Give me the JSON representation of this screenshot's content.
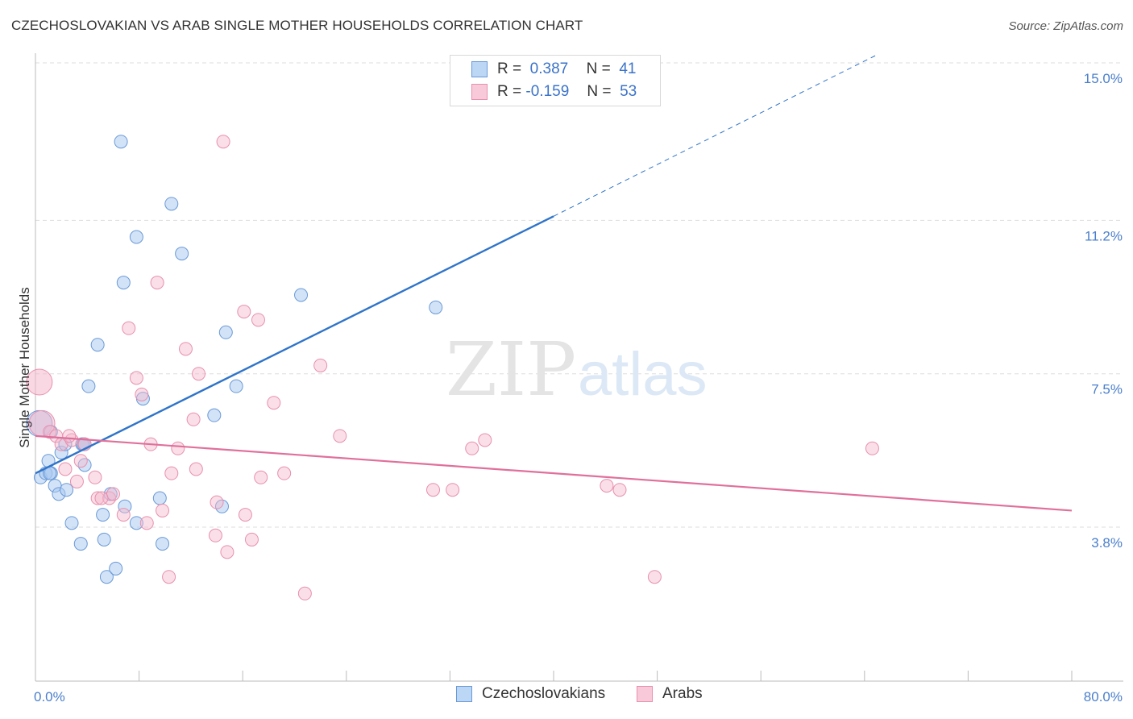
{
  "title": "CZECHOSLOVAKIAN VS ARAB SINGLE MOTHER HOUSEHOLDS CORRELATION CHART",
  "source": "Source: ZipAtlas.com",
  "watermark": {
    "zip": "ZIP",
    "atlas": "atlas"
  },
  "colors": {
    "czech_fill": "#a8c8f0",
    "czech_stroke": "#6a9ad8",
    "czech_line": "#2f74c9",
    "arab_fill": "#f5b8cc",
    "arab_stroke": "#e890ae",
    "arab_line": "#e0709a",
    "grid": "#dddddd",
    "tick_text": "#4a7fcc"
  },
  "legend_top": {
    "rows": [
      {
        "r_label": "R =",
        "r_value": "0.387",
        "n_label": "N =",
        "n_value": "41"
      },
      {
        "r_label": "R =",
        "r_value": "-0.159",
        "n_label": "N =",
        "n_value": "53"
      }
    ]
  },
  "legend_bottom": {
    "czech": "Czechoslovakians",
    "arab": "Arabs"
  },
  "chart_data": {
    "type": "scatter",
    "title": "CZECHOSLOVAKIAN VS ARAB SINGLE MOTHER HOUSEHOLDS CORRELATION CHART",
    "xlabel": "",
    "ylabel": "Single Mother Households",
    "xlim": [
      0,
      80
    ],
    "ylim": [
      0,
      15.5
    ],
    "x_tick_labels": [
      "0.0%",
      "80.0%"
    ],
    "y_ticks": [
      3.8,
      7.5,
      11.2,
      15.0
    ],
    "y_tick_labels": [
      "3.8%",
      "7.5%",
      "11.2%",
      "15.0%"
    ],
    "series": [
      {
        "name": "Czechoslovakians",
        "R": 0.387,
        "N": 41,
        "trend": {
          "x0": 0,
          "y0": 5.1,
          "x1": 40,
          "y1": 11.3,
          "dashed_to_x": 65,
          "dashed_to_y": 15.2
        },
        "points": [
          [
            0.3,
            6.3
          ],
          [
            0.4,
            5.0
          ],
          [
            0.8,
            5.1
          ],
          [
            1.0,
            5.4
          ],
          [
            1.2,
            5.1
          ],
          [
            1.2,
            6.1
          ],
          [
            1.5,
            4.8
          ],
          [
            1.8,
            4.6
          ],
          [
            2.0,
            5.6
          ],
          [
            2.3,
            5.8
          ],
          [
            2.8,
            3.9
          ],
          [
            3.5,
            3.4
          ],
          [
            3.6,
            5.8
          ],
          [
            3.7,
            5.8
          ],
          [
            3.8,
            5.3
          ],
          [
            4.1,
            7.2
          ],
          [
            4.8,
            8.2
          ],
          [
            5.2,
            4.1
          ],
          [
            5.3,
            3.5
          ],
          [
            5.5,
            2.6
          ],
          [
            5.8,
            4.6
          ],
          [
            6.2,
            2.8
          ],
          [
            6.6,
            13.1
          ],
          [
            6.8,
            9.7
          ],
          [
            6.9,
            4.3
          ],
          [
            7.8,
            3.9
          ],
          [
            7.8,
            10.8
          ],
          [
            8.3,
            6.9
          ],
          [
            9.6,
            4.5
          ],
          [
            9.8,
            3.4
          ],
          [
            10.5,
            11.6
          ],
          [
            11.3,
            10.4
          ],
          [
            13.8,
            6.5
          ],
          [
            14.4,
            4.3
          ],
          [
            14.7,
            8.5
          ],
          [
            15.5,
            7.2
          ],
          [
            20.5,
            9.4
          ],
          [
            30.9,
            9.1
          ],
          [
            3.8,
            5.8
          ],
          [
            2.4,
            4.7
          ],
          [
            1.1,
            5.1
          ]
        ]
      },
      {
        "name": "Arabs",
        "R": -0.159,
        "N": 53,
        "trend": {
          "x0": 0,
          "y0": 6.0,
          "x1": 80,
          "y1": 4.2
        },
        "points": [
          [
            0.3,
            7.3
          ],
          [
            0.5,
            6.3
          ],
          [
            1.1,
            6.1
          ],
          [
            1.6,
            6.0
          ],
          [
            2.0,
            5.8
          ],
          [
            2.3,
            5.2
          ],
          [
            2.8,
            5.9
          ],
          [
            3.2,
            4.9
          ],
          [
            3.5,
            5.4
          ],
          [
            3.8,
            5.8
          ],
          [
            4.6,
            5.0
          ],
          [
            4.8,
            4.5
          ],
          [
            5.7,
            4.5
          ],
          [
            6.0,
            4.6
          ],
          [
            6.8,
            4.1
          ],
          [
            7.2,
            8.6
          ],
          [
            7.8,
            7.4
          ],
          [
            8.2,
            7.0
          ],
          [
            8.6,
            3.9
          ],
          [
            8.9,
            5.8
          ],
          [
            9.4,
            9.7
          ],
          [
            9.8,
            4.2
          ],
          [
            10.3,
            2.6
          ],
          [
            10.5,
            5.1
          ],
          [
            11.0,
            5.7
          ],
          [
            11.6,
            8.1
          ],
          [
            12.2,
            6.4
          ],
          [
            12.4,
            5.2
          ],
          [
            12.6,
            7.5
          ],
          [
            13.9,
            3.6
          ],
          [
            14.0,
            4.4
          ],
          [
            14.5,
            13.1
          ],
          [
            14.8,
            3.2
          ],
          [
            16.1,
            9.0
          ],
          [
            16.2,
            4.1
          ],
          [
            16.7,
            3.5
          ],
          [
            17.2,
            8.8
          ],
          [
            17.4,
            5.0
          ],
          [
            18.4,
            6.8
          ],
          [
            19.2,
            5.1
          ],
          [
            20.8,
            2.2
          ],
          [
            22.0,
            7.7
          ],
          [
            23.5,
            6.0
          ],
          [
            30.7,
            4.7
          ],
          [
            32.2,
            4.7
          ],
          [
            33.7,
            5.7
          ],
          [
            34.7,
            5.9
          ],
          [
            44.1,
            4.8
          ],
          [
            45.1,
            4.7
          ],
          [
            47.8,
            2.6
          ],
          [
            64.6,
            5.7
          ],
          [
            5.1,
            4.5
          ],
          [
            2.6,
            6.0
          ]
        ]
      }
    ]
  }
}
